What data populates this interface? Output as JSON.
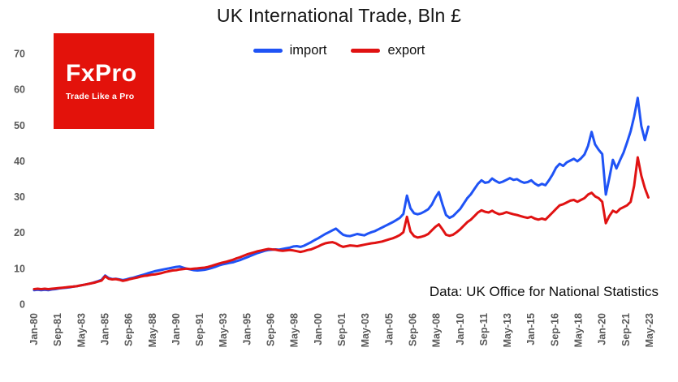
{
  "page": {
    "background": "#ffffff"
  },
  "logo": {
    "text": "FxPro",
    "tagline": "Trade Like a Pro",
    "color": "#e3120b"
  },
  "chart_data": {
    "type": "line",
    "title": "UK International Trade, Bln £",
    "xlabel": "",
    "ylabel": "",
    "ylim": [
      0,
      70
    ],
    "y_ticks": [
      0,
      10,
      20,
      30,
      40,
      50,
      60,
      70
    ],
    "grid": false,
    "legend_position": "top",
    "annotation": "Data: UK Office for National Statistics",
    "tick_color": "#595959",
    "x_start": 1980.0,
    "x_step_years": 0.25,
    "x_tick_start": 1980.0,
    "x_tick_step_years": 1.6666667,
    "x_tick_labels": [
      "Jan-80",
      "Sep-81",
      "May-83",
      "Jan-85",
      "Sep-86",
      "May-88",
      "Jan-90",
      "Sep-91",
      "May-93",
      "Jan-95",
      "Sep-96",
      "May-98",
      "Jan-00",
      "Sep-01",
      "May-03",
      "Jan-05",
      "Sep-06",
      "May-08",
      "Jan-10",
      "Sep-11",
      "May-13",
      "Jan-15",
      "Sep-16",
      "May-18",
      "Jan-20",
      "Sep-21",
      "May-23"
    ],
    "series": [
      {
        "name": "import",
        "color": "#1f53f5",
        "values": [
          3.9,
          4.0,
          3.9,
          4.0,
          3.9,
          4.1,
          4.2,
          4.4,
          4.5,
          4.6,
          4.7,
          4.9,
          5.0,
          5.2,
          5.4,
          5.6,
          5.8,
          6.1,
          6.4,
          6.8,
          8.0,
          7.3,
          7.0,
          7.1,
          6.9,
          6.7,
          6.9,
          7.2,
          7.4,
          7.7,
          8.0,
          8.3,
          8.6,
          8.9,
          9.2,
          9.4,
          9.6,
          9.8,
          10.0,
          10.2,
          10.4,
          10.5,
          10.2,
          9.9,
          9.7,
          9.5,
          9.4,
          9.5,
          9.6,
          9.8,
          10.1,
          10.4,
          10.8,
          11.1,
          11.3,
          11.5,
          11.7,
          12.0,
          12.3,
          12.7,
          13.1,
          13.5,
          13.9,
          14.3,
          14.6,
          14.9,
          15.1,
          15.2,
          15.3,
          15.2,
          15.4,
          15.6,
          15.8,
          16.1,
          16.2,
          16.0,
          16.3,
          16.8,
          17.3,
          17.9,
          18.4,
          19.0,
          19.6,
          20.1,
          20.6,
          21.1,
          20.2,
          19.4,
          19.1,
          19.0,
          19.3,
          19.6,
          19.4,
          19.2,
          19.7,
          20.1,
          20.4,
          20.9,
          21.4,
          21.9,
          22.4,
          22.9,
          23.5,
          24.1,
          25.2,
          30.3,
          26.8,
          25.4,
          25.1,
          25.4,
          25.9,
          26.5,
          27.8,
          29.8,
          31.3,
          27.9,
          24.9,
          24.1,
          24.6,
          25.6,
          26.6,
          28.1,
          29.6,
          30.7,
          32.2,
          33.6,
          34.6,
          33.9,
          34.1,
          35.1,
          34.4,
          33.9,
          34.2,
          34.7,
          35.2,
          34.7,
          34.9,
          34.3,
          33.9,
          34.1,
          34.6,
          33.7,
          33.1,
          33.6,
          33.2,
          34.6,
          36.2,
          38.1,
          39.2,
          38.6,
          39.6,
          40.1,
          40.6,
          39.9,
          40.7,
          41.8,
          44.2,
          48.1,
          44.6,
          43.1,
          41.9,
          30.6,
          35.2,
          40.3,
          37.9,
          40.2,
          42.3,
          45.2,
          48.3,
          52.4,
          57.6,
          49.8,
          45.8,
          49.6
        ]
      },
      {
        "name": "export",
        "color": "#e01212",
        "values": [
          4.2,
          4.3,
          4.2,
          4.3,
          4.2,
          4.3,
          4.4,
          4.5,
          4.6,
          4.7,
          4.8,
          4.9,
          5.0,
          5.2,
          5.4,
          5.6,
          5.8,
          6.0,
          6.3,
          6.6,
          7.8,
          7.1,
          6.9,
          7.0,
          6.8,
          6.5,
          6.7,
          7.0,
          7.2,
          7.4,
          7.7,
          7.9,
          8.0,
          8.2,
          8.3,
          8.5,
          8.7,
          9.0,
          9.2,
          9.4,
          9.5,
          9.7,
          9.8,
          9.9,
          9.8,
          9.9,
          10.0,
          10.1,
          10.2,
          10.4,
          10.7,
          11.0,
          11.3,
          11.6,
          11.8,
          12.1,
          12.4,
          12.8,
          13.1,
          13.5,
          13.9,
          14.2,
          14.5,
          14.8,
          15.0,
          15.2,
          15.4,
          15.3,
          15.2,
          15.0,
          14.9,
          15.0,
          15.1,
          15.0,
          14.8,
          14.6,
          14.8,
          15.1,
          15.3,
          15.7,
          16.1,
          16.6,
          17.0,
          17.2,
          17.3,
          17.0,
          16.4,
          16.0,
          16.2,
          16.4,
          16.3,
          16.2,
          16.4,
          16.6,
          16.8,
          17.0,
          17.1,
          17.3,
          17.5,
          17.8,
          18.1,
          18.4,
          18.8,
          19.3,
          20.1,
          24.4,
          20.3,
          19.0,
          18.6,
          18.8,
          19.1,
          19.6,
          20.6,
          21.6,
          22.3,
          20.9,
          19.4,
          19.1,
          19.4,
          20.1,
          20.9,
          21.9,
          22.9,
          23.6,
          24.6,
          25.6,
          26.2,
          25.8,
          25.6,
          26.1,
          25.5,
          25.1,
          25.3,
          25.7,
          25.4,
          25.1,
          24.9,
          24.6,
          24.3,
          24.1,
          24.4,
          23.9,
          23.6,
          23.9,
          23.6,
          24.6,
          25.6,
          26.6,
          27.6,
          27.9,
          28.4,
          28.9,
          29.1,
          28.6,
          29.1,
          29.6,
          30.6,
          31.1,
          30.1,
          29.6,
          28.6,
          22.6,
          24.6,
          26.1,
          25.6,
          26.6,
          27.1,
          27.6,
          28.6,
          33.1,
          41.0,
          35.9,
          32.4,
          29.8
        ]
      }
    ]
  }
}
